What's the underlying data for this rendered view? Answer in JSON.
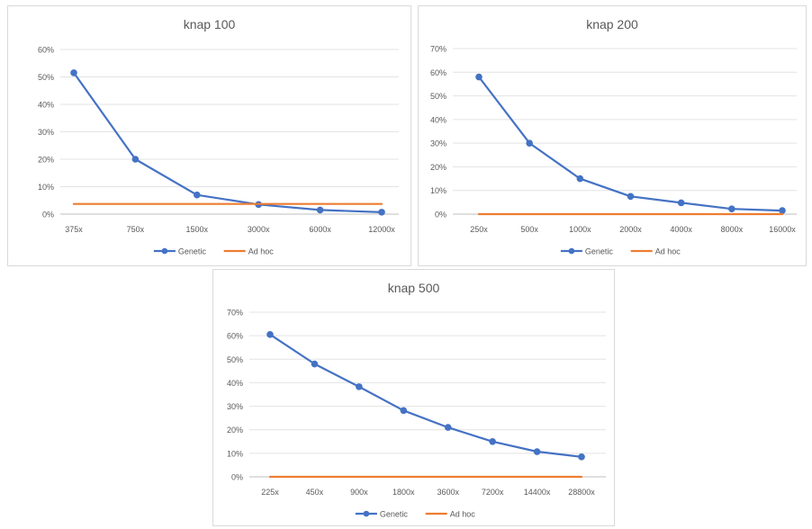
{
  "chart_data": [
    {
      "type": "line",
      "title": "knap 100",
      "categories": [
        "375x",
        "750x",
        "1500x",
        "3000x",
        "6000x",
        "12000x"
      ],
      "y_ticks": [
        "0%",
        "10%",
        "20%",
        "30%",
        "40%",
        "50%",
        "60%"
      ],
      "ylim": [
        0,
        60
      ],
      "grid": true,
      "legend_position": "bottom",
      "series": [
        {
          "name": "Genetic",
          "values": [
            51.5,
            20,
            7,
            3.5,
            1.5,
            0.7
          ],
          "color": "#4472C4",
          "markers": true
        },
        {
          "name": "Ad hoc",
          "values": [
            3.7,
            3.7,
            3.7,
            3.7,
            3.7,
            3.7
          ],
          "color": "#ED7D31",
          "markers": false
        }
      ]
    },
    {
      "type": "line",
      "title": "knap 200",
      "categories": [
        "250x",
        "500x",
        "1000x",
        "2000x",
        "4000x",
        "8000x",
        "16000x"
      ],
      "y_ticks": [
        "0%",
        "10%",
        "20%",
        "30%",
        "40%",
        "50%",
        "60%",
        "70%"
      ],
      "ylim": [
        0,
        70
      ],
      "grid": true,
      "legend_position": "bottom",
      "series": [
        {
          "name": "Genetic",
          "values": [
            58,
            30,
            15,
            7.5,
            4.8,
            2.2,
            1.5
          ],
          "color": "#4472C4",
          "markers": true
        },
        {
          "name": "Ad hoc",
          "values": [
            0,
            0,
            0,
            0,
            0,
            0,
            0
          ],
          "color": "#ED7D31",
          "markers": false
        }
      ]
    },
    {
      "type": "line",
      "title": "knap 500",
      "categories": [
        "225x",
        "450x",
        "900x",
        "1800x",
        "3600x",
        "7200x",
        "14400x",
        "28800x"
      ],
      "y_ticks": [
        "0%",
        "10%",
        "20%",
        "30%",
        "40%",
        "50%",
        "60%",
        "70%"
      ],
      "ylim": [
        0,
        70
      ],
      "grid": true,
      "legend_position": "bottom",
      "series": [
        {
          "name": "Genetic",
          "values": [
            60.5,
            48,
            38.3,
            28.2,
            21,
            15,
            10.7,
            8.5
          ],
          "color": "#4472C4",
          "markers": true
        },
        {
          "name": "Ad hoc",
          "values": [
            0,
            0,
            0,
            0,
            0,
            0,
            0,
            0
          ],
          "color": "#ED7D31",
          "markers": false
        }
      ]
    }
  ]
}
